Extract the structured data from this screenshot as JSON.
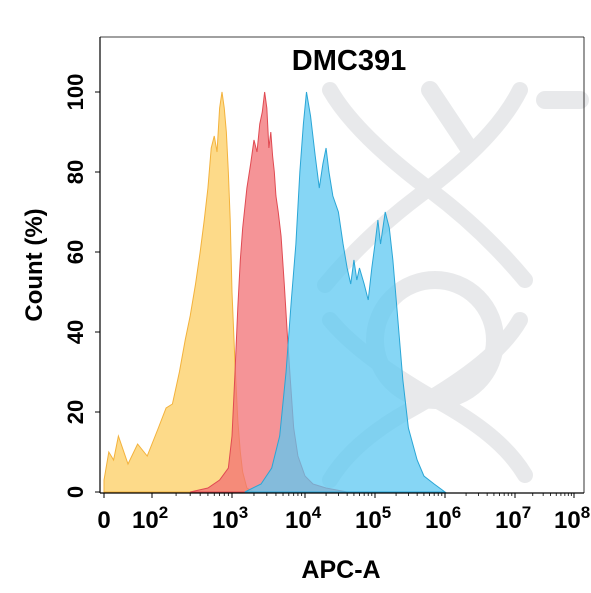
{
  "chart_data": {
    "type": "area",
    "title": "DMC391",
    "xlabel": "APC-A",
    "ylabel": "Count  (%)",
    "x_scale": "biexponential",
    "xlim": [
      0,
      100000000
    ],
    "ylim": [
      0,
      100
    ],
    "x_ticks": [
      {
        "value": 0,
        "label": "0",
        "base": "0",
        "exp": ""
      },
      {
        "value": 100,
        "label": "10^2",
        "base": "10",
        "exp": "2"
      },
      {
        "value": 1000,
        "label": "10^3",
        "base": "10",
        "exp": "3"
      },
      {
        "value": 10000,
        "label": "10^4",
        "base": "10",
        "exp": "4"
      },
      {
        "value": 100000,
        "label": "10^5",
        "base": "10",
        "exp": "5"
      },
      {
        "value": 1000000,
        "label": "10^6",
        "base": "10",
        "exp": "6"
      },
      {
        "value": 10000000,
        "label": "10^7",
        "base": "10",
        "exp": "7"
      },
      {
        "value": 100000000,
        "label": "10^8",
        "base": "10",
        "exp": "8"
      }
    ],
    "y_ticks": [
      0,
      20,
      40,
      60,
      80,
      100
    ],
    "grid": false,
    "legend": "none",
    "series": [
      {
        "color": "#fdd374",
        "stroke": "#f3b23c",
        "opacity": 0.85,
        "points": [
          [
            0,
            3
          ],
          [
            10,
            10
          ],
          [
            20,
            8
          ],
          [
            30,
            14
          ],
          [
            50,
            7
          ],
          [
            70,
            12
          ],
          [
            90,
            9
          ],
          [
            120,
            16
          ],
          [
            150,
            21
          ],
          [
            180,
            22
          ],
          [
            220,
            30
          ],
          [
            260,
            38
          ],
          [
            300,
            44
          ],
          [
            350,
            52
          ],
          [
            400,
            60
          ],
          [
            450,
            68
          ],
          [
            500,
            76
          ],
          [
            550,
            86
          ],
          [
            600,
            89
          ],
          [
            650,
            85
          ],
          [
            700,
            96
          ],
          [
            750,
            100
          ],
          [
            800,
            96
          ],
          [
            850,
            90
          ],
          [
            900,
            80
          ],
          [
            950,
            68
          ],
          [
            1000,
            50
          ],
          [
            1100,
            32
          ],
          [
            1200,
            18
          ],
          [
            1300,
            10
          ],
          [
            1400,
            5
          ],
          [
            1600,
            1
          ],
          [
            2000,
            0
          ]
        ]
      },
      {
        "color": "#f27074",
        "stroke": "#e04a52",
        "opacity": 0.75,
        "points": [
          [
            300,
            0
          ],
          [
            500,
            1
          ],
          [
            700,
            3
          ],
          [
            900,
            6
          ],
          [
            1000,
            14
          ],
          [
            1100,
            30
          ],
          [
            1200,
            46
          ],
          [
            1300,
            58
          ],
          [
            1400,
            66
          ],
          [
            1600,
            76
          ],
          [
            1800,
            82
          ],
          [
            2000,
            88
          ],
          [
            2200,
            85
          ],
          [
            2400,
            92
          ],
          [
            2600,
            95
          ],
          [
            2800,
            100
          ],
          [
            3000,
            96
          ],
          [
            3200,
            86
          ],
          [
            3400,
            90
          ],
          [
            3600,
            84
          ],
          [
            3800,
            80
          ],
          [
            4000,
            74
          ],
          [
            4300,
            70
          ],
          [
            4700,
            64
          ],
          [
            5200,
            52
          ],
          [
            5700,
            40
          ],
          [
            6300,
            28
          ],
          [
            7000,
            16
          ],
          [
            8000,
            9
          ],
          [
            10000,
            4
          ],
          [
            13000,
            2
          ],
          [
            20000,
            1
          ],
          [
            40000,
            0
          ]
        ]
      },
      {
        "color": "#5ec8f2",
        "stroke": "#2aa6d6",
        "opacity": 0.75,
        "points": [
          [
            1500,
            0
          ],
          [
            2500,
            2
          ],
          [
            3500,
            6
          ],
          [
            4500,
            14
          ],
          [
            5500,
            30
          ],
          [
            6500,
            48
          ],
          [
            7500,
            62
          ],
          [
            8500,
            80
          ],
          [
            9500,
            92
          ],
          [
            10500,
            100
          ],
          [
            12000,
            94
          ],
          [
            14000,
            84
          ],
          [
            16000,
            76
          ],
          [
            18000,
            82
          ],
          [
            20000,
            86
          ],
          [
            22000,
            80
          ],
          [
            25000,
            74
          ],
          [
            30000,
            70
          ],
          [
            35000,
            62
          ],
          [
            40000,
            56
          ],
          [
            45000,
            52
          ],
          [
            50000,
            58
          ],
          [
            55000,
            53
          ],
          [
            60000,
            56
          ],
          [
            70000,
            52
          ],
          [
            80000,
            48
          ],
          [
            90000,
            56
          ],
          [
            100000,
            62
          ],
          [
            110000,
            68
          ],
          [
            120000,
            62
          ],
          [
            140000,
            70
          ],
          [
            160000,
            66
          ],
          [
            180000,
            58
          ],
          [
            210000,
            44
          ],
          [
            250000,
            28
          ],
          [
            300000,
            16
          ],
          [
            400000,
            8
          ],
          [
            500000,
            4
          ],
          [
            700000,
            2
          ],
          [
            1000000,
            0
          ]
        ]
      }
    ]
  }
}
